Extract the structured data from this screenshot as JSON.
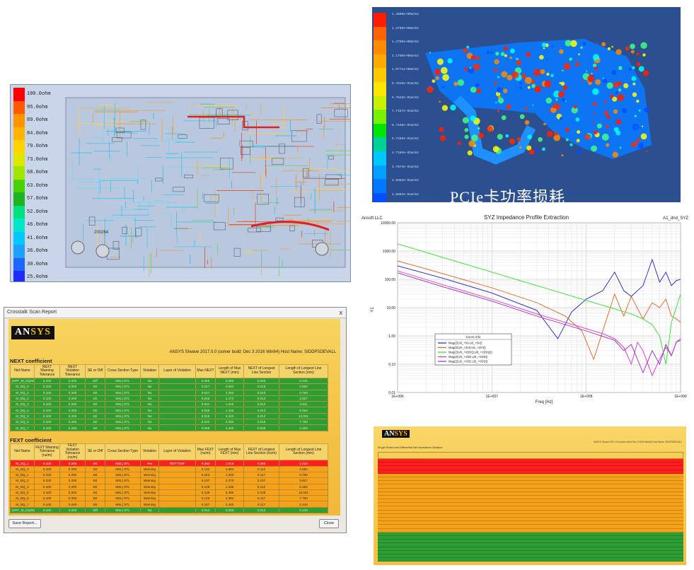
{
  "impedance_map": {
    "legend": [
      "100.0ohm",
      "95.0ohm",
      "89.0ohm",
      "84.0ohm",
      "79.0ohm",
      "73.0ohm",
      "68.0ohm",
      "63.0ohm",
      "57.0ohm",
      "52.0ohm",
      "46.0ohm",
      "41.0ohm",
      "36.0ohm",
      "30.0ohm",
      "25.0ohm"
    ],
    "legend_colors": [
      "#ff0000",
      "#ff5a00",
      "#ff9300",
      "#ffb400",
      "#ffd200",
      "#e1e600",
      "#a0e600",
      "#49d200",
      "#1eb41e",
      "#00e17d",
      "#00e6c8",
      "#00c8ff",
      "#1ea0ff",
      "#1e64ff",
      "#1e2dff"
    ],
    "board_label": "200264"
  },
  "power_loss": {
    "caption": "PCIe卡功率损耗",
    "legend_colors": [
      "#ff1e00",
      "#ff6400",
      "#ff8c00",
      "#ffaa00",
      "#ffc800",
      "#ffe600",
      "#c8f000",
      "#78f000",
      "#00e600",
      "#00d296",
      "#00c8ff",
      "#00a0ff",
      "#0078ff",
      "#0050ff"
    ],
    "legend_labels": [
      "1.4808e+00W/m2",
      "1.3798e+00W/m2",
      "1.2789e+00W/m2",
      "1.1780e+00W/m2",
      "1.0771e+00W/m2",
      "9.7619e-01W/m2",
      "8.7528e-01W/m2",
      "7.7437e-01W/m2",
      "6.7346e-01W/m2",
      "5.7256e-01W/m2",
      "4.7165e-01W/m2",
      "3.7074e-01W/m2",
      "2.6983e-01W/m2",
      "1.6892e-01W/m2"
    ]
  },
  "crosstalk_report": {
    "window_title": "Crosstalk Scan Report",
    "close_glyph": "x",
    "logo_a": "AN",
    "logo_b": "SYS",
    "build_info": "ANSYS SIwave 2017.0.0 (solver build: Dec 3 2016 Win64) Host Name: SIDDPSDEVALL",
    "next_title": "NEXT coefficient",
    "next_headers": [
      "Net Name",
      "NEXT Warning Tolerance",
      "NEXT Violation Tolerance",
      "SE or Diff",
      "Cross Section Type",
      "Violation",
      "Layer of Violation",
      "Max NEXT",
      "Length of Max NEXT (mm)",
      "NEXT of Longest Line Section",
      "Length of Longest Line Section (mm)"
    ],
    "next_rows": [
      [
        "DIFF_M_DQSB",
        "0.100",
        "0.200",
        "Diff",
        "MSL| STL",
        "No",
        "",
        "0.065",
        "0.050",
        "0.065",
        "0.126"
      ],
      [
        "M_DQ_0",
        "0.100",
        "0.200",
        "SE",
        "MSL| STL",
        "No",
        "",
        "0.017",
        "4.684",
        "0.015",
        "4.684"
      ],
      [
        "M_DQ_1",
        "0.100",
        "0.200",
        "SE",
        "MSL| STL",
        "No",
        "",
        "0.027",
        "1.293",
        "0.016",
        "0.760"
      ],
      [
        "M_DQ_2",
        "0.100",
        "0.200",
        "SE",
        "MSL| STL",
        "No",
        "",
        "0.026",
        "2.270",
        "0.014",
        "3.827"
      ],
      [
        "M_DQ_3",
        "0.100",
        "0.200",
        "SE",
        "MSL| STL",
        "No",
        "",
        "0.021",
        "1.016",
        "0.014",
        "3.911"
      ],
      [
        "M_DQ_4",
        "0.100",
        "0.200",
        "SE",
        "MSL| STL",
        "No",
        "",
        "0.058",
        "1.235",
        "0.013",
        "9.353"
      ],
      [
        "M_DQ_5",
        "0.100",
        "0.200",
        "SE",
        "MSL| STL",
        "No",
        "",
        "0.018",
        "3.423",
        "0.013",
        "13.031"
      ],
      [
        "M_DQ_6",
        "0.100",
        "0.200",
        "SE",
        "MSL| STL",
        "No",
        "",
        "0.022",
        "2.283",
        "0.015",
        "7.750"
      ],
      [
        "M_DQ_7",
        "0.100",
        "0.200",
        "SE",
        "MSL| STL",
        "No",
        "",
        "0.058",
        "2.440",
        "0.009",
        "2.453"
      ]
    ],
    "fext_title": "FEXT coefficient",
    "fext_headers": [
      "Net Name",
      "FEXT Warning Tolerance (ns/m)",
      "FEXT Violation Tolerance (ns/m)",
      "SE or Diff",
      "Cross Section Type",
      "Violation",
      "Layer of Violation",
      "Max FEXT (ns/m)",
      "Length of Max FEXT (mm)",
      "FEXT of Longest Line Section (ns/m)",
      "Length of Longest Line Section (mm)"
    ],
    "fext_rows": [
      [
        "M_DQ_1",
        "0.100",
        "0.200",
        "SE",
        "MSL| STL",
        "Yes",
        "\"BOTTOM\"",
        "0.250",
        "1.016",
        "0.250",
        "1.016"
      ],
      [
        "M_DQ_3",
        "0.100",
        "0.200",
        "SE",
        "MSL| STL",
        "Warning",
        "",
        "0.132",
        "4.684",
        "0.112",
        "4.684"
      ],
      [
        "M_DQ_1",
        "0.100",
        "0.200",
        "SE",
        "MSL| STL",
        "Warning",
        "",
        "0.153",
        "1.293",
        "0.117",
        "0.760"
      ],
      [
        "M_DQ_2",
        "0.100",
        "0.200",
        "SE",
        "MSL| STL",
        "Warning",
        "",
        "0.137",
        "2.270",
        "0.107",
        "3.827"
      ],
      [
        "M_DQ_4",
        "0.100",
        "0.200",
        "SE",
        "MSL| STL",
        "Warning",
        "",
        "0.128",
        "1.235",
        "0.112",
        "9.353"
      ],
      [
        "M_DQ_5",
        "0.100",
        "0.200",
        "SE",
        "MSL| STL",
        "Warning",
        "",
        "0.139",
        "3.480",
        "0.108",
        "13.031"
      ],
      [
        "M_DQ_6",
        "0.100",
        "0.200",
        "SE",
        "MSL| STL",
        "Warning",
        "",
        "0.146",
        "4.394",
        "0.117",
        "7.750"
      ],
      [
        "M_DQ_7",
        "0.100",
        "0.200",
        "SE",
        "MSL| STL",
        "Warning",
        "",
        "0.137",
        "2.440",
        "0.117",
        "2.440"
      ],
      [
        "DIFF_M_DQSB",
        "0.100",
        "0.200",
        "Diff",
        "MSL| STL",
        "No",
        "",
        "0.014",
        "0.630",
        "0.014",
        "0.126"
      ]
    ],
    "save_button": "Save Report...",
    "close_button": "Close"
  },
  "syz_header": {
    "company": "Ansoft LLC",
    "design": "A1_dnd_SYZ",
    "legend_title": "Curve Info"
  },
  "chart_data": {
    "type": "line",
    "title": "SYZ Impedance Profile Extraction",
    "xlabel": "Freq [Hz]",
    "ylabel": "Y1",
    "xscale": "log",
    "yscale": "log",
    "xlim": [
      1000000,
      1000000000
    ],
    "ylim": [
      0.01,
      10000
    ],
    "x_ticks": [
      "1E+006",
      "1E+007",
      "1E+008",
      "1E+009"
    ],
    "y_ticks": [
      "0.01",
      "0.10",
      "1.00",
      "10.00",
      "100.00",
      "1000.00",
      "10000.00"
    ],
    "legend_position": "center",
    "grid": true,
    "series": [
      {
        "name": "Mag(Z(U8_+5V,U8_+5V))",
        "color": "#1e1ed2",
        "x": [
          1000000.0,
          3000000.0,
          10000000.0,
          30000000.0,
          50000000.0,
          70000000.0,
          100000000.0,
          150000000.0,
          200000000.0,
          250000000.0,
          300000000.0,
          400000000.0,
          500000000.0,
          600000000.0,
          700000000.0,
          800000000.0,
          900000000.0,
          1000000000.0
        ],
        "y": [
          300,
          110,
          33,
          8,
          0.8,
          7,
          20,
          40,
          180,
          40,
          25,
          60,
          500,
          80,
          180,
          60,
          90,
          100
        ]
      },
      {
        "name": "Mag(Z(U8_+3V3,U8_+3V3))",
        "color": "#f05a14",
        "x": [
          1000000.0,
          3000000.0,
          10000000.0,
          30000000.0,
          60000000.0,
          90000000.0,
          120000000.0,
          160000000.0,
          200000000.0,
          250000000.0,
          300000000.0,
          400000000.0,
          500000000.0,
          600000000.0,
          700000000.0,
          800000000.0,
          900000000.0,
          1000000000.0
        ],
        "y": [
          450,
          160,
          50,
          15,
          5,
          1.5,
          0.15,
          3,
          30,
          5,
          25,
          4,
          15,
          10,
          20,
          5,
          4,
          3
        ]
      },
      {
        "name": "Mag(Z(U8_+VDDQ,U8_+VDDQ))",
        "color": "#28e628",
        "x": [
          1000000.0,
          3000000.0,
          10000000.0,
          30000000.0,
          100000000.0,
          200000000.0,
          300000000.0,
          400000000.0,
          500000000.0,
          600000000.0,
          700000000.0,
          800000000.0,
          900000000.0,
          1000000000.0
        ],
        "y": [
          1800,
          600,
          180,
          60,
          18,
          9,
          6,
          4,
          2.5,
          1,
          0.1,
          3,
          10,
          30
        ]
      },
      {
        "name": "Mag(Z(U8_+VDD,U8_+VDD))",
        "color": "#e628e6",
        "x": [
          1000000.0,
          3000000.0,
          10000000.0,
          30000000.0,
          100000000.0,
          150000000.0,
          200000000.0,
          250000000.0,
          300000000.0,
          350000000.0,
          400000000.0,
          500000000.0,
          600000000.0,
          700000000.0,
          800000000.0,
          900000000.0,
          1000000000.0
        ],
        "y": [
          200,
          65,
          20,
          6,
          1.8,
          1.2,
          0.8,
          0.4,
          0.1,
          0.6,
          0.3,
          0.04,
          0.15,
          0.4,
          0.2,
          0.6,
          0.8
        ]
      },
      {
        "name": "Mag(Z(U8_+VDD,U8_+VDD))",
        "color": "#a028c8",
        "x": [
          1000000.0,
          3000000.0,
          10000000.0,
          30000000.0,
          100000000.0,
          200000000.0,
          250000000.0,
          300000000.0,
          400000000.0,
          500000000.0,
          600000000.0,
          700000000.0,
          800000000.0,
          900000000.0,
          1000000000.0
        ],
        "y": [
          170,
          55,
          17,
          5,
          1.5,
          0.7,
          0.3,
          0.5,
          0.05,
          0.3,
          0.1,
          0.5,
          0.2,
          0.6,
          0.7
        ]
      }
    ]
  },
  "si_violation": {
    "logo_a": "AN",
    "logo_b": "SYS",
    "title": "Single Ended and Differential Net Impedance Violation",
    "build_info": "ANSYS SIwave 2017.0.0 (solver build: Dec 3 2016 Win64) Host Name: SIDDPSDEVALL",
    "row_colors": [
      "#ff1e1e",
      "#ff1e1e",
      "#ff1e1e",
      "#ff1e1e",
      "#f5a21a",
      "#f5a21a",
      "#f5a21a",
      "#f5a21a",
      "#f5a21a",
      "#f5a21a",
      "#f5a21a",
      "#f5a21a",
      "#f5a21a",
      "#f5a21a",
      "#f5a21a",
      "#f5a21a",
      "#f5a21a",
      "#f5a21a",
      "#f5a21a",
      "#f5a21a",
      "#2c9e33",
      "#2c9e33",
      "#2c9e33",
      "#2c9e33",
      "#2c9e33",
      "#2c9e33",
      "#2c9e33",
      "#2c9e33"
    ]
  }
}
